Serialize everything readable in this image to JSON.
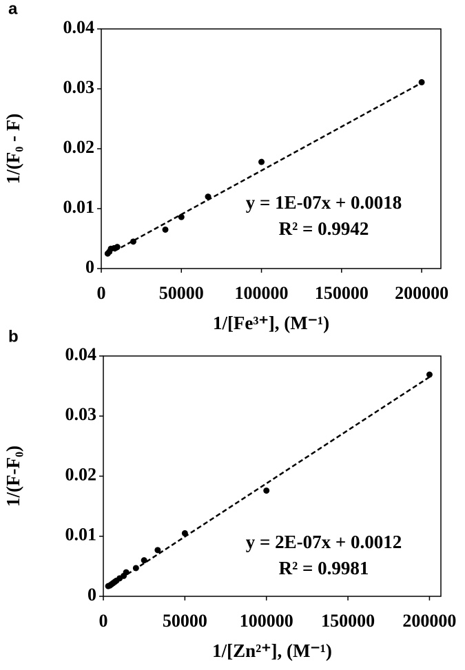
{
  "chart_data": [
    {
      "type": "scatter",
      "panel_label": "a",
      "x_label": "1/[Fe³⁺], (M⁻¹)",
      "y_label": "1/(F₀ - F)",
      "x": [
        4000,
        5000,
        6000,
        8000,
        10000,
        20000,
        40000,
        50000,
        66667,
        100000,
        200000
      ],
      "values": [
        0.0025,
        0.0028,
        0.0033,
        0.0034,
        0.0036,
        0.0045,
        0.0065,
        0.0086,
        0.012,
        0.0178,
        0.0311
      ],
      "color": "#000000",
      "trendline": {
        "x": [
          4000,
          200000
        ],
        "y": [
          0.0023,
          0.031
        ]
      },
      "annotations": [
        "y = 1E-07x + 0.0018",
        "R² = 0.9942"
      ],
      "xlim": [
        0,
        212000
      ],
      "xticks": [
        0,
        50000,
        100000,
        150000,
        200000
      ],
      "ylim": [
        0,
        0.04
      ],
      "yticks": [
        0,
        0.01,
        0.02,
        0.03,
        0.04
      ]
    },
    {
      "type": "scatter",
      "panel_label": "b",
      "x_label": "1/[Zn²⁺], (M⁻¹)",
      "y_label": "1/(F-F₀)",
      "x": [
        3000,
        4000,
        5000,
        6000,
        7000,
        8000,
        10000,
        12500,
        14000,
        20000,
        25000,
        33333,
        50000,
        100000,
        200000
      ],
      "values": [
        0.0017,
        0.0018,
        0.002,
        0.0022,
        0.0024,
        0.0026,
        0.003,
        0.0034,
        0.004,
        0.0047,
        0.006,
        0.0077,
        0.0105,
        0.0176,
        0.0369
      ],
      "color": "#000000",
      "trendline": {
        "x": [
          3000,
          200000
        ],
        "y": [
          0.0016,
          0.0365
        ]
      },
      "annotations": [
        "y = 2E-07x + 0.0012",
        "R² = 0.9981"
      ],
      "xlim": [
        0,
        207000
      ],
      "xticks": [
        0,
        50000,
        100000,
        150000,
        200000
      ],
      "ylim": [
        0,
        0.04
      ],
      "yticks": [
        0,
        0.01,
        0.02,
        0.03,
        0.04
      ]
    }
  ]
}
